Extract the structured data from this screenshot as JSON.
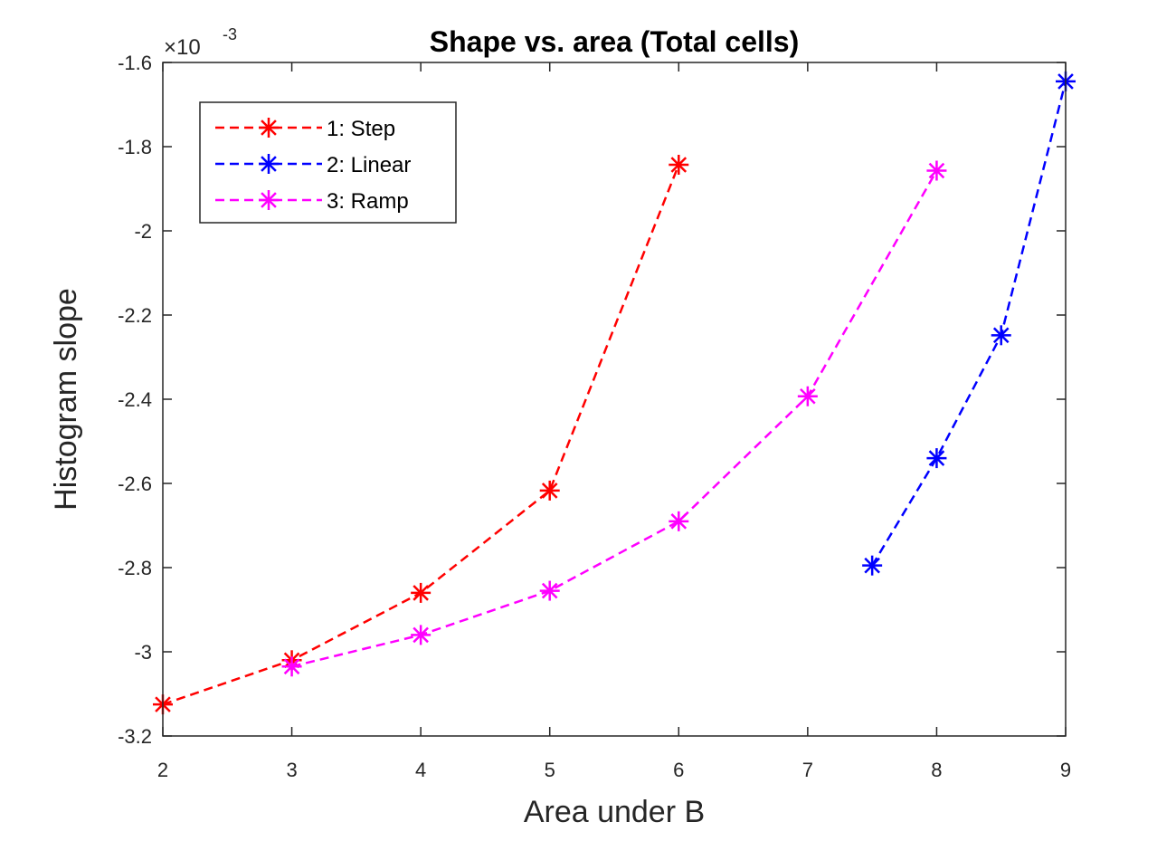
{
  "chart_data": {
    "type": "line",
    "title": "Shape vs. area (Total cells)",
    "xlabel": "Area under B",
    "ylabel": "Histogram slope",
    "xlim": [
      2,
      9
    ],
    "ylim": [
      -3.2,
      -1.6
    ],
    "y_multiplier": "×10",
    "y_exponent": "-3",
    "xticks": [
      2,
      3,
      4,
      5,
      6,
      7,
      8,
      9
    ],
    "xtick_labels": [
      "2",
      "3",
      "4",
      "5",
      "6",
      "7",
      "8",
      "9"
    ],
    "yticks": [
      -3.2,
      -3.0,
      -2.8,
      -2.6,
      -2.4,
      -2.2,
      -2.0,
      -1.8,
      -1.6
    ],
    "ytick_labels": [
      "-3.2",
      "-3",
      "-2.8",
      "-2.6",
      "-2.4",
      "-2.2",
      "-2",
      "-1.8",
      "-1.6"
    ],
    "grid": false,
    "legend_position": "top-left",
    "line_style": "dashed",
    "marker": "asterisk",
    "series": [
      {
        "name": "1: Step",
        "color": "#ff0000",
        "x": [
          2,
          3,
          4,
          5,
          6
        ],
        "y": [
          -3.125,
          -3.02,
          -2.86,
          -2.617,
          -1.843
        ]
      },
      {
        "name": "2: Linear",
        "color": "#0000ff",
        "x": [
          7.5,
          8,
          8.5,
          9
        ],
        "y": [
          -2.795,
          -2.54,
          -2.248,
          -1.645
        ]
      },
      {
        "name": "3: Ramp",
        "color": "#ff00ff",
        "x": [
          3,
          4,
          5,
          6,
          7,
          8
        ],
        "y": [
          -3.035,
          -2.96,
          -2.855,
          -2.69,
          -2.393,
          -1.857
        ]
      }
    ]
  }
}
